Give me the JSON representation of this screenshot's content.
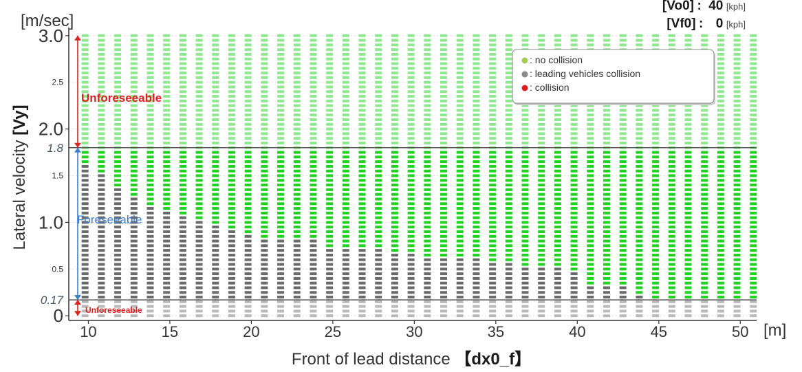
{
  "chart_data": {
    "type": "scatter",
    "title": "",
    "xlabel_prefix": "Front of lead distance",
    "xlabel_var": "【dx0_f】",
    "ylabel_prefix": "Lateral velocity ",
    "ylabel_var": "[Vy]",
    "x_unit": "[m]",
    "y_unit": "[m/sec]",
    "xlim": [
      8.8,
      51
    ],
    "ylim": [
      -0.05,
      3.05
    ],
    "x_ticks": [
      10,
      15,
      20,
      25,
      30,
      35,
      40,
      45,
      50
    ],
    "y_ticks_major": [
      {
        "value": 0,
        "label": "0"
      },
      {
        "value": 1.0,
        "label": "1.0"
      },
      {
        "value": 2.0,
        "label": "2.0"
      },
      {
        "value": 3.0,
        "label": "3.0"
      }
    ],
    "y_ticks_minor": [
      {
        "value": 0.5,
        "label": "0.5"
      },
      {
        "value": 1.5,
        "label": "1.5"
      },
      {
        "value": 2.5,
        "label": "2.5"
      }
    ],
    "thresholds": [
      {
        "value": 1.8,
        "label": "1.8"
      },
      {
        "value": 0.17,
        "label": "0.17"
      }
    ],
    "x_grid": {
      "start": 9.8,
      "step": 1,
      "count": 42
    },
    "y_grid": {
      "start": 0.0,
      "step": 0.05,
      "count": 61
    },
    "collision_boundary": [
      {
        "x_max": 9.8,
        "y_top": 1.65
      },
      {
        "x_max": 10.8,
        "y_top": 1.55
      },
      {
        "x_max": 11.8,
        "y_top": 1.4
      },
      {
        "x_max": 12.8,
        "y_top": 1.3
      },
      {
        "x_max": 13.8,
        "y_top": 1.2
      },
      {
        "x_max": 14.8,
        "y_top": 1.15
      },
      {
        "x_max": 15.8,
        "y_top": 1.1
      },
      {
        "x_max": 16.8,
        "y_top": 1.05
      },
      {
        "x_max": 17.8,
        "y_top": 1.0
      },
      {
        "x_max": 18.8,
        "y_top": 0.95
      },
      {
        "x_max": 19.8,
        "y_top": 0.9
      },
      {
        "x_max": 23.8,
        "y_top": 0.85
      },
      {
        "x_max": 27.8,
        "y_top": 0.75
      },
      {
        "x_max": 29.8,
        "y_top": 0.7
      },
      {
        "x_max": 33.8,
        "y_top": 0.65
      },
      {
        "x_max": 35.8,
        "y_top": 0.6
      },
      {
        "x_max": 38.8,
        "y_top": 0.55
      },
      {
        "x_max": 39.8,
        "y_top": 0.5
      },
      {
        "x_max": 42.8,
        "y_top": 0.35
      },
      {
        "x_max": 43.8,
        "y_top": 0.25
      },
      {
        "x_max": 51,
        "y_top": 0.17
      }
    ],
    "band_below": 0.17,
    "band_above": 1.8,
    "legend": [
      {
        "label": ": no collision",
        "color": "#a7cc52"
      },
      {
        "label": ": leading vehicles collision",
        "color": "#8a8a8a"
      },
      {
        "label": ": collision",
        "color": "#e02020"
      }
    ],
    "legend_position": "top-right",
    "annotations": {
      "upper_region": "Unforeseeable",
      "middle_region": "Foreseeable",
      "lower_region": "Unforeseeable"
    },
    "grid": true
  },
  "params": [
    {
      "name": "[Vo0]",
      "sep": ":",
      "value": "40",
      "unit": "[kph]"
    },
    {
      "name": "[Vf0]",
      "sep": ":",
      "value": "0",
      "unit": "[kph]"
    }
  ],
  "colors": {
    "green_bright": "#1fd21f",
    "green_light": "#8ee88e",
    "gray_dark": "#6a6a6a",
    "gray_light": "#b9b9b9",
    "red": "#e02020",
    "blue": "#3b7fd0"
  }
}
